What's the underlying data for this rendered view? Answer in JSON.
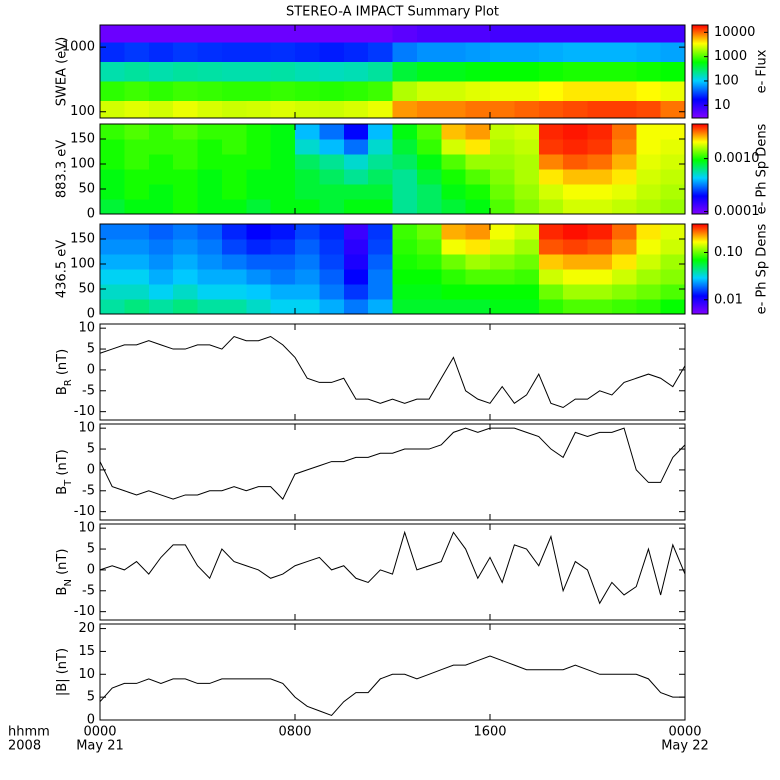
{
  "chart_data": [
    {
      "type": "heatmap",
      "title": "STEREO-A IMPACT Summary Plot",
      "ylabel": "SWEA (eV)",
      "log_y": true,
      "xlim": [
        0,
        24
      ],
      "xticks": [
        0,
        8,
        16,
        24
      ],
      "ylim": [
        80,
        2200
      ],
      "yticks": [
        100,
        1000
      ],
      "x_edges": [
        0,
        1,
        2,
        3,
        4,
        5,
        6,
        7,
        8,
        9,
        10,
        11,
        12,
        13,
        14,
        15,
        16,
        17,
        18,
        19,
        20,
        21,
        22,
        23,
        24
      ],
      "y_edges": [
        80,
        150,
        300,
        600,
        1200,
        2200
      ],
      "z": [
        [
          2500,
          2800,
          2500,
          3000,
          2600,
          2400,
          2500,
          2700,
          2500,
          2400,
          2600,
          3000,
          7000,
          8000,
          8000,
          9000,
          9000,
          10000,
          11000,
          12000,
          13000,
          13000,
          12000,
          9000
        ],
        [
          800,
          900,
          800,
          900,
          850,
          800,
          800,
          850,
          800,
          750,
          800,
          900,
          2000,
          2500,
          2500,
          2800,
          3000,
          3000,
          3500,
          4000,
          4000,
          4000,
          3500,
          3000
        ],
        [
          180,
          200,
          180,
          200,
          190,
          180,
          180,
          190,
          170,
          160,
          170,
          200,
          400,
          500,
          500,
          550,
          600,
          600,
          650,
          700,
          700,
          700,
          650,
          600
        ],
        [
          25,
          28,
          25,
          28,
          26,
          25,
          25,
          26,
          24,
          22,
          24,
          28,
          50,
          60,
          60,
          65,
          70,
          70,
          75,
          80,
          80,
          80,
          75,
          70
        ],
        [
          4,
          4,
          4,
          4,
          4,
          4,
          4,
          4,
          4,
          4,
          4,
          4,
          5,
          6,
          6,
          6,
          7,
          7,
          7,
          7,
          7,
          7,
          7,
          7
        ]
      ],
      "zlim": [
        3,
        20000
      ],
      "log_z": true,
      "colorbar_ticks": [
        10,
        100,
        1000,
        10000
      ],
      "colorbar_label": "e- Flux",
      "colormap": [
        "#8000ff",
        "#0000ff",
        "#00d0ff",
        "#00ff00",
        "#ffff00",
        "#ff0000"
      ]
    },
    {
      "type": "heatmap",
      "ylabel": "883.3 eV",
      "log_y": false,
      "xlim": [
        0,
        24
      ],
      "xticks": [
        0,
        8,
        16,
        24
      ],
      "ylim": [
        0,
        180
      ],
      "yticks": [
        0,
        50,
        100,
        150
      ],
      "x_edges": [
        0,
        1,
        2,
        3,
        4,
        5,
        6,
        7,
        8,
        9,
        10,
        11,
        12,
        13,
        14,
        15,
        16,
        17,
        18,
        19,
        20,
        21,
        22,
        23,
        24
      ],
      "y_edges": [
        0,
        30,
        60,
        90,
        120,
        150,
        180
      ],
      "z": [
        [
          0.0008,
          0.0009,
          0.0009,
          0.001,
          0.0009,
          0.0009,
          0.0008,
          0.0009,
          0.0009,
          0.0008,
          0.0009,
          0.0009,
          0.0006,
          0.0007,
          0.0008,
          0.0009,
          0.0012,
          0.0014,
          0.0016,
          0.0018,
          0.0018,
          0.0017,
          0.0016,
          0.0015
        ],
        [
          0.0009,
          0.001,
          0.0009,
          0.001,
          0.0009,
          0.001,
          0.0009,
          0.0009,
          0.0008,
          0.0008,
          0.0008,
          0.0008,
          0.0006,
          0.0007,
          0.0009,
          0.001,
          0.0013,
          0.0015,
          0.0018,
          0.002,
          0.002,
          0.0019,
          0.0017,
          0.0016
        ],
        [
          0.0009,
          0.001,
          0.001,
          0.001,
          0.0009,
          0.001,
          0.0009,
          0.0009,
          0.0008,
          0.0007,
          0.0006,
          0.0007,
          0.0006,
          0.0008,
          0.001,
          0.0012,
          0.0014,
          0.0016,
          0.0022,
          0.0025,
          0.0025,
          0.0022,
          0.0018,
          0.0017
        ],
        [
          0.001,
          0.0011,
          0.001,
          0.0011,
          0.001,
          0.001,
          0.001,
          0.0009,
          0.0007,
          0.0006,
          0.0005,
          0.0006,
          0.0007,
          0.0009,
          0.0012,
          0.0015,
          0.0015,
          0.0016,
          0.003,
          0.0034,
          0.0032,
          0.0026,
          0.0019,
          0.0018
        ],
        [
          0.001,
          0.0011,
          0.0011,
          0.0011,
          0.001,
          0.0011,
          0.001,
          0.0009,
          0.0005,
          0.0004,
          0.0003,
          0.0005,
          0.0008,
          0.0011,
          0.0018,
          0.0022,
          0.0016,
          0.0017,
          0.0038,
          0.004,
          0.0038,
          0.003,
          0.002,
          0.0019
        ],
        [
          0.0011,
          0.0012,
          0.0011,
          0.0012,
          0.0011,
          0.0011,
          0.001,
          0.0009,
          0.0004,
          0.0003,
          0.0002,
          0.0004,
          0.0009,
          0.0012,
          0.0025,
          0.0028,
          0.0017,
          0.0018,
          0.004,
          0.0042,
          0.004,
          0.0032,
          0.002,
          0.002
        ]
      ],
      "zlim": [
        9e-05,
        0.0045
      ],
      "log_z": true,
      "colorbar_ticks": [
        0.0001,
        {
          "value": 0.001,
          "label": "0.0010"
        }
      ],
      "colorbar_label": "e- Ph Sp Dens",
      "colormap": [
        "#8000ff",
        "#0000ff",
        "#00d0ff",
        "#00ff00",
        "#ffff00",
        "#ff0000"
      ]
    },
    {
      "type": "heatmap",
      "ylabel": "436.5 eV",
      "log_y": false,
      "xlim": [
        0,
        24
      ],
      "xticks": [
        0,
        8,
        16,
        24
      ],
      "ylim": [
        0,
        180
      ],
      "yticks": [
        0,
        50,
        100,
        150
      ],
      "x_edges": [
        0,
        1,
        2,
        3,
        4,
        5,
        6,
        7,
        8,
        9,
        10,
        11,
        12,
        13,
        14,
        15,
        16,
        17,
        18,
        19,
        20,
        21,
        22,
        23,
        24
      ],
      "y_edges": [
        0,
        30,
        60,
        90,
        120,
        150,
        180
      ],
      "z": [
        [
          0.04,
          0.045,
          0.04,
          0.045,
          0.04,
          0.04,
          0.035,
          0.03,
          0.03,
          0.025,
          0.02,
          0.025,
          0.06,
          0.06,
          0.06,
          0.06,
          0.065,
          0.065,
          0.08,
          0.09,
          0.09,
          0.085,
          0.08,
          0.07
        ],
        [
          0.035,
          0.035,
          0.03,
          0.035,
          0.03,
          0.03,
          0.028,
          0.025,
          0.025,
          0.02,
          0.015,
          0.02,
          0.065,
          0.065,
          0.07,
          0.07,
          0.07,
          0.07,
          0.1,
          0.12,
          0.12,
          0.11,
          0.1,
          0.09
        ],
        [
          0.03,
          0.03,
          0.025,
          0.028,
          0.025,
          0.025,
          0.022,
          0.02,
          0.022,
          0.018,
          0.012,
          0.02,
          0.07,
          0.07,
          0.08,
          0.09,
          0.09,
          0.085,
          0.14,
          0.16,
          0.16,
          0.14,
          0.12,
          0.11
        ],
        [
          0.025,
          0.025,
          0.022,
          0.025,
          0.022,
          0.02,
          0.018,
          0.018,
          0.02,
          0.016,
          0.01,
          0.018,
          0.075,
          0.08,
          0.1,
          0.12,
          0.11,
          0.1,
          0.2,
          0.22,
          0.22,
          0.18,
          0.14,
          0.12
        ],
        [
          0.022,
          0.022,
          0.02,
          0.022,
          0.02,
          0.016,
          0.014,
          0.015,
          0.018,
          0.015,
          0.009,
          0.016,
          0.08,
          0.09,
          0.16,
          0.18,
          0.14,
          0.12,
          0.3,
          0.32,
          0.3,
          0.24,
          0.16,
          0.14
        ],
        [
          0.02,
          0.02,
          0.018,
          0.02,
          0.018,
          0.014,
          0.012,
          0.013,
          0.016,
          0.014,
          0.008,
          0.015,
          0.085,
          0.1,
          0.22,
          0.24,
          0.16,
          0.14,
          0.35,
          0.38,
          0.36,
          0.28,
          0.18,
          0.15
        ]
      ],
      "zlim": [
        0.005,
        0.4
      ],
      "log_z": true,
      "colorbar_ticks": [
        0.01,
        {
          "value": 0.1,
          "label": "0.10"
        }
      ],
      "colorbar_label": "e- Ph Sp Dens",
      "colormap": [
        "#8000ff",
        "#0000ff",
        "#00d0ff",
        "#00ff00",
        "#ffff00",
        "#ff0000"
      ]
    },
    {
      "type": "line",
      "ylabel": [
        "B",
        "R",
        " (nT)"
      ],
      "subscript_part": 1,
      "color": "#000000",
      "xlim": [
        0,
        24
      ],
      "xticks": [
        0,
        8,
        16,
        24
      ],
      "ylim": [
        -12,
        11
      ],
      "yticks": [
        -10,
        -5,
        0,
        5,
        10
      ],
      "x": [
        0,
        0.5,
        1,
        1.5,
        2,
        2.5,
        3,
        3.5,
        4,
        4.5,
        5,
        5.5,
        6,
        6.5,
        7,
        7.5,
        8,
        8.5,
        9,
        9.5,
        10,
        10.5,
        11,
        11.5,
        12,
        12.5,
        13,
        13.5,
        14,
        14.5,
        15,
        15.5,
        16,
        16.5,
        17,
        17.5,
        18,
        18.5,
        19,
        19.5,
        20,
        20.5,
        21,
        21.5,
        22,
        22.5,
        23,
        23.5,
        24
      ],
      "values": [
        4,
        5,
        6,
        6,
        7,
        6,
        5,
        5,
        6,
        6,
        5,
        8,
        7,
        7,
        8,
        6,
        3,
        -2,
        -3,
        -3,
        -2,
        -7,
        -7,
        -8,
        -7,
        -8,
        -7,
        -7,
        -2,
        3,
        -5,
        -7,
        -8,
        -4,
        -8,
        -6,
        -1,
        -8,
        -9,
        -7,
        -7,
        -5,
        -6,
        -3,
        -2,
        -1,
        -2,
        -4,
        1
      ]
    },
    {
      "type": "line",
      "ylabel": [
        "B",
        "T",
        " (nT)"
      ],
      "subscript_part": 1,
      "color": "#000000",
      "xlim": [
        0,
        24
      ],
      "xticks": [
        0,
        8,
        16,
        24
      ],
      "ylim": [
        -12,
        11
      ],
      "yticks": [
        -10,
        -5,
        0,
        5,
        10
      ],
      "x": [
        0,
        0.5,
        1,
        1.5,
        2,
        2.5,
        3,
        3.5,
        4,
        4.5,
        5,
        5.5,
        6,
        6.5,
        7,
        7.5,
        8,
        8.5,
        9,
        9.5,
        10,
        10.5,
        11,
        11.5,
        12,
        12.5,
        13,
        13.5,
        14,
        14.5,
        15,
        15.5,
        16,
        16.5,
        17,
        17.5,
        18,
        18.5,
        19,
        19.5,
        20,
        20.5,
        21,
        21.5,
        22,
        22.5,
        23,
        23.5,
        24
      ],
      "values": [
        2,
        -4,
        -5,
        -6,
        -5,
        -6,
        -7,
        -6,
        -6,
        -5,
        -5,
        -4,
        -5,
        -4,
        -4,
        -7,
        -1,
        0,
        1,
        2,
        2,
        3,
        3,
        4,
        4,
        5,
        5,
        5,
        6,
        9,
        10,
        9,
        10,
        10,
        10,
        9,
        8,
        5,
        3,
        9,
        8,
        9,
        9,
        10,
        0,
        -3,
        -3,
        3,
        6
      ]
    },
    {
      "type": "line",
      "ylabel": [
        "B",
        "N",
        " (nT)"
      ],
      "subscript_part": 1,
      "color": "#000000",
      "xlim": [
        0,
        24
      ],
      "xticks": [
        0,
        8,
        16,
        24
      ],
      "ylim": [
        -12,
        11
      ],
      "yticks": [
        -10,
        -5,
        0,
        5,
        10
      ],
      "x": [
        0,
        0.5,
        1,
        1.5,
        2,
        2.5,
        3,
        3.5,
        4,
        4.5,
        5,
        5.5,
        6,
        6.5,
        7,
        7.5,
        8,
        8.5,
        9,
        9.5,
        10,
        10.5,
        11,
        11.5,
        12,
        12.5,
        13,
        13.5,
        14,
        14.5,
        15,
        15.5,
        16,
        16.5,
        17,
        17.5,
        18,
        18.5,
        19,
        19.5,
        20,
        20.5,
        21,
        21.5,
        22,
        22.5,
        23,
        23.5,
        24
      ],
      "values": [
        0,
        1,
        0,
        2,
        -1,
        3,
        6,
        6,
        1,
        -2,
        5,
        2,
        1,
        0,
        -2,
        -1,
        1,
        2,
        3,
        0,
        1,
        -2,
        -3,
        0,
        -1,
        9,
        0,
        1,
        2,
        9,
        5,
        -2,
        3,
        -3,
        6,
        5,
        1,
        8,
        -5,
        2,
        0,
        -8,
        -3,
        -6,
        -4,
        5,
        -6,
        6,
        -1
      ]
    },
    {
      "type": "line",
      "ylabel": [
        "|B| (nT)"
      ],
      "color": "#000000",
      "xlim": [
        0,
        24
      ],
      "xticks": [
        {
          "value": 0,
          "label": "0000"
        },
        {
          "value": 8,
          "label": "0800"
        },
        {
          "value": 16,
          "label": "1600"
        },
        {
          "value": 24,
          "label": "0000"
        }
      ],
      "xtick_sublabels": [
        {
          "value": 0,
          "label": "May 21"
        },
        {
          "value": 24,
          "label": "May 22"
        }
      ],
      "x_axis_label": [
        "hhmm",
        "2008"
      ],
      "ylim": [
        0,
        21
      ],
      "yticks": [
        0,
        5,
        10,
        15,
        20
      ],
      "x": [
        0,
        0.5,
        1,
        1.5,
        2,
        2.5,
        3,
        3.5,
        4,
        4.5,
        5,
        5.5,
        6,
        6.5,
        7,
        7.5,
        8,
        8.5,
        9,
        9.5,
        10,
        10.5,
        11,
        11.5,
        12,
        12.5,
        13,
        13.5,
        14,
        14.5,
        15,
        15.5,
        16,
        16.5,
        17,
        17.5,
        18,
        18.5,
        19,
        19.5,
        20,
        20.5,
        21,
        21.5,
        22,
        22.5,
        23,
        23.5,
        24
      ],
      "values": [
        4,
        7,
        8,
        8,
        9,
        8,
        9,
        9,
        8,
        8,
        9,
        9,
        9,
        9,
        9,
        8,
        5,
        3,
        2,
        1,
        4,
        6,
        6,
        9,
        10,
        10,
        9,
        10,
        11,
        12,
        12,
        13,
        14,
        13,
        12,
        11,
        11,
        11,
        11,
        12,
        11,
        10,
        10,
        10,
        10,
        9,
        6,
        5,
        5
      ]
    }
  ]
}
